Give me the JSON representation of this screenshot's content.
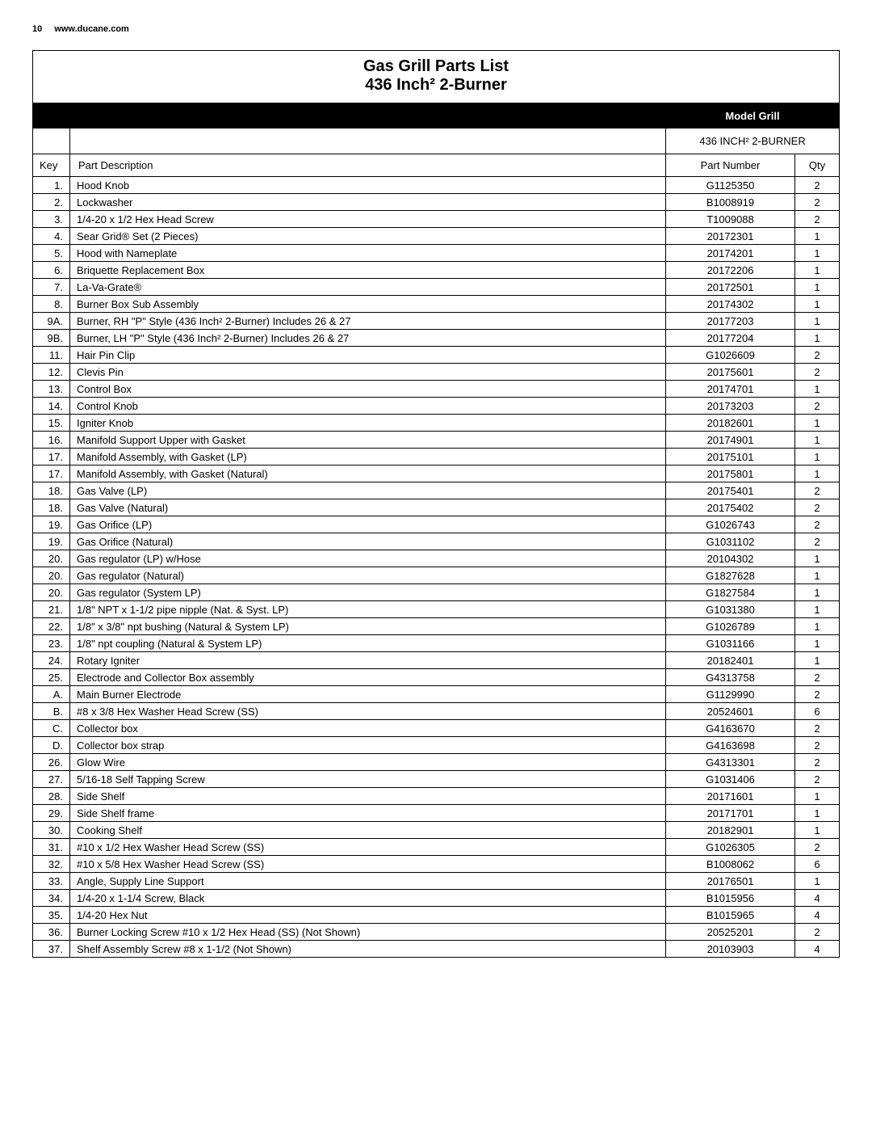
{
  "page": {
    "number": "10",
    "url": "www.ducane.com"
  },
  "title_line1": "Gas Grill Parts List",
  "title_line2": "436 Inch² 2-Burner",
  "model_header": "Model Grill",
  "model_name": "436 INCH² 2-BURNER",
  "columns": {
    "key": "Key",
    "desc": "Part Description",
    "part": "Part Number",
    "qty": "Qty"
  },
  "rows": [
    {
      "key": "1.",
      "desc": "Hood Knob",
      "part": "G1125350",
      "qty": "2"
    },
    {
      "key": "2.",
      "desc": "Lockwasher",
      "part": "B1008919",
      "qty": "2"
    },
    {
      "key": "3.",
      "desc": "1/4-20 x 1/2 Hex Head Screw",
      "part": "T1009088",
      "qty": "2"
    },
    {
      "key": "4.",
      "desc": "Sear Grid® Set (2 Pieces)",
      "part": "20172301",
      "qty": "1"
    },
    {
      "key": "5.",
      "desc": "Hood with Nameplate",
      "part": "20174201",
      "qty": "1"
    },
    {
      "key": "6.",
      "desc": "Briquette Replacement Box",
      "part": "20172206",
      "qty": "1"
    },
    {
      "key": "7.",
      "desc": "La-Va-Grate®",
      "part": "20172501",
      "qty": "1"
    },
    {
      "key": "8.",
      "desc": "Burner Box Sub Assembly",
      "part": "20174302",
      "qty": "1"
    },
    {
      "key": "9A.",
      "desc": "Burner, RH \"P\" Style (436 Inch² 2-Burner) Includes 26 & 27",
      "part": "20177203",
      "qty": "1"
    },
    {
      "key": "9B.",
      "desc": "Burner, LH \"P\" Style (436 Inch² 2-Burner) Includes 26 & 27",
      "part": "20177204",
      "qty": "1"
    },
    {
      "key": "11.",
      "desc": "Hair Pin Clip",
      "part": "G1026609",
      "qty": "2"
    },
    {
      "key": "12.",
      "desc": "Clevis Pin",
      "part": "20175601",
      "qty": "2"
    },
    {
      "key": "13.",
      "desc": "Control Box",
      "part": "20174701",
      "qty": "1"
    },
    {
      "key": "14.",
      "desc": "Control Knob",
      "part": "20173203",
      "qty": "2"
    },
    {
      "key": "15.",
      "desc": "Igniter Knob",
      "part": "20182601",
      "qty": "1"
    },
    {
      "key": "16.",
      "desc": "Manifold Support Upper with Gasket",
      "part": "20174901",
      "qty": "1"
    },
    {
      "key": "17.",
      "desc": "Manifold Assembly, with Gasket (LP)",
      "part": "20175101",
      "qty": "1"
    },
    {
      "key": "17.",
      "desc": "Manifold Assembly, with Gasket (Natural)",
      "part": "20175801",
      "qty": "1"
    },
    {
      "key": "18.",
      "desc": "Gas Valve (LP)",
      "part": "20175401",
      "qty": "2"
    },
    {
      "key": "18.",
      "desc": "Gas Valve (Natural)",
      "part": "20175402",
      "qty": "2"
    },
    {
      "key": "19.",
      "desc": "Gas Orifice (LP)",
      "part": "G1026743",
      "qty": "2"
    },
    {
      "key": "19.",
      "desc": "Gas Orifice (Natural)",
      "part": "G1031102",
      "qty": "2"
    },
    {
      "key": "20.",
      "desc": "Gas regulator (LP) w/Hose",
      "part": "20104302",
      "qty": "1"
    },
    {
      "key": "20.",
      "desc": "Gas regulator (Natural)",
      "part": "G1827628",
      "qty": "1"
    },
    {
      "key": "20.",
      "desc": "Gas regulator (System LP)",
      "part": "G1827584",
      "qty": "1"
    },
    {
      "key": "21.",
      "desc": "1/8\" NPT x 1-1/2 pipe nipple (Nat. & Syst. LP)",
      "part": "G1031380",
      "qty": "1"
    },
    {
      "key": "22.",
      "desc": "1/8\" x 3/8\" npt bushing (Natural & System LP)",
      "part": "G1026789",
      "qty": "1"
    },
    {
      "key": "23.",
      "desc": "1/8\" npt coupling (Natural & System LP)",
      "part": "G1031166",
      "qty": "1"
    },
    {
      "key": "24.",
      "desc": "Rotary Igniter",
      "part": "20182401",
      "qty": "1"
    },
    {
      "key": "25.",
      "desc": "Electrode and Collector Box assembly",
      "part": "G4313758",
      "qty": "2"
    },
    {
      "key": "A.",
      "desc": "Main Burner Electrode",
      "part": "G1129990",
      "qty": "2"
    },
    {
      "key": "B.",
      "desc": "#8 x 3/8 Hex Washer Head Screw (SS)",
      "part": "20524601",
      "qty": "6"
    },
    {
      "key": "C.",
      "desc": "Collector box",
      "part": "G4163670",
      "qty": "2"
    },
    {
      "key": "D.",
      "desc": "Collector box strap",
      "part": "G4163698",
      "qty": "2"
    },
    {
      "key": "26.",
      "desc": "Glow Wire",
      "part": "G4313301",
      "qty": "2"
    },
    {
      "key": "27.",
      "desc": "5/16-18 Self Tapping Screw",
      "part": "G1031406",
      "qty": "2"
    },
    {
      "key": "28.",
      "desc": "Side Shelf",
      "part": "20171601",
      "qty": "1"
    },
    {
      "key": "29.",
      "desc": "Side Shelf frame",
      "part": "20171701",
      "qty": "1"
    },
    {
      "key": "30.",
      "desc": "Cooking Shelf",
      "part": "20182901",
      "qty": "1"
    },
    {
      "key": "31.",
      "desc": "#10 x 1/2 Hex Washer Head Screw (SS)",
      "part": "G1026305",
      "qty": "2"
    },
    {
      "key": "32.",
      "desc": "#10 x 5/8 Hex Washer Head Screw (SS)",
      "part": "B1008062",
      "qty": "6"
    },
    {
      "key": "33.",
      "desc": "Angle, Supply Line Support",
      "part": "20176501",
      "qty": "1"
    },
    {
      "key": "34.",
      "desc": "1/4-20 x 1-1/4 Screw, Black",
      "part": "B1015956",
      "qty": "4"
    },
    {
      "key": "35.",
      "desc": "1/4-20 Hex Nut",
      "part": "B1015965",
      "qty": "4"
    },
    {
      "key": "36.",
      "desc": "Burner Locking Screw #10 x 1/2 Hex Head (SS) (Not Shown)",
      "part": "20525201",
      "qty": "2"
    },
    {
      "key": "37.",
      "desc": "Shelf Assembly Screw #8 x 1-1/2 (Not Shown)",
      "part": "20103903",
      "qty": "4"
    }
  ]
}
